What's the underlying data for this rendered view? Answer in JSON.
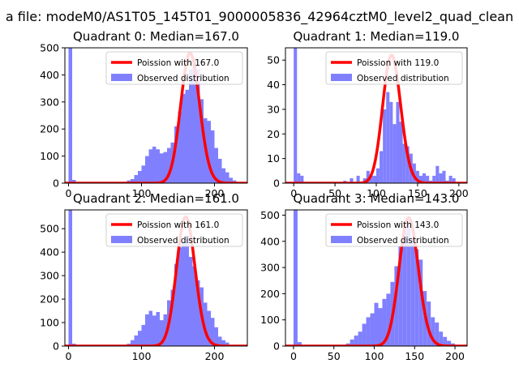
{
  "suptitle": "a file: modeM0/AS1T05_145T01_9000005836_42964cztM0_level2_quad_clean",
  "chart_data": [
    {
      "type": "histogram",
      "title": "Quadrant 0: Median=167.0",
      "xlim": [
        -5,
        245
      ],
      "ylim": [
        0,
        500
      ],
      "xticks": [
        0,
        100,
        200
      ],
      "yticks": [
        0,
        100,
        200,
        300,
        400,
        500
      ],
      "bin_width": 5,
      "legend_position": "upper right",
      "series": [
        {
          "name": "Poission with 167.0",
          "kind": "poisson_line",
          "mean": 167.0,
          "peak": 480,
          "color": "#ff0000"
        },
        {
          "name": "Observed distribution",
          "kind": "histogram",
          "color": "#8080ff",
          "x": [
            0,
            5,
            75,
            80,
            85,
            90,
            95,
            100,
            105,
            110,
            115,
            120,
            125,
            130,
            135,
            140,
            145,
            150,
            155,
            160,
            165,
            170,
            175,
            180,
            185,
            190,
            195,
            200,
            205,
            210,
            215,
            220,
            225
          ],
          "counts": [
            500,
            12,
            5,
            10,
            15,
            30,
            45,
            65,
            100,
            125,
            135,
            125,
            110,
            115,
            130,
            150,
            210,
            265,
            330,
            345,
            420,
            460,
            420,
            310,
            240,
            230,
            195,
            130,
            90,
            55,
            40,
            20,
            10
          ]
        }
      ]
    },
    {
      "type": "histogram",
      "title": "Quadrant 1: Median=119.0",
      "xlim": [
        -10,
        210
      ],
      "ylim": [
        0,
        55
      ],
      "xticks": [
        0,
        50,
        100,
        150,
        200
      ],
      "yticks": [
        0,
        10,
        20,
        30,
        40,
        50
      ],
      "bin_width": 4,
      "legend_position": "upper right",
      "series": [
        {
          "name": "Poission with 119.0",
          "kind": "poisson_line",
          "mean": 119.0,
          "peak": 52,
          "color": "#ff0000"
        },
        {
          "name": "Observed distribution",
          "kind": "histogram",
          "color": "#8080ff",
          "x": [
            0,
            4,
            8,
            60,
            68,
            76,
            84,
            88,
            92,
            96,
            100,
            104,
            108,
            112,
            116,
            120,
            124,
            128,
            132,
            136,
            140,
            144,
            148,
            152,
            156,
            160,
            164,
            168,
            172,
            176,
            180,
            184,
            188,
            192
          ],
          "counts": [
            55,
            4,
            3,
            1,
            2,
            3,
            2,
            5,
            3,
            3,
            6,
            13,
            30,
            37,
            33,
            24,
            33,
            25,
            16,
            15,
            12,
            8,
            5,
            3,
            4,
            3,
            1,
            3,
            7,
            4,
            5,
            1,
            3,
            2
          ]
        }
      ]
    },
    {
      "type": "histogram",
      "title": "Quadrant 2: Median=161.0",
      "xlim": [
        -5,
        245
      ],
      "ylim": [
        0,
        580
      ],
      "xticks": [
        0,
        100,
        200
      ],
      "yticks": [
        0,
        100,
        200,
        300,
        400,
        500
      ],
      "bin_width": 5,
      "legend_position": "upper right",
      "series": [
        {
          "name": "Poission with 161.0",
          "kind": "poisson_line",
          "mean": 161.0,
          "peak": 550,
          "color": "#ff0000"
        },
        {
          "name": "Observed distribution",
          "kind": "histogram",
          "color": "#8080ff",
          "x": [
            0,
            5,
            75,
            80,
            85,
            90,
            95,
            100,
            105,
            110,
            115,
            120,
            125,
            130,
            135,
            140,
            145,
            150,
            155,
            160,
            165,
            170,
            175,
            180,
            185,
            190,
            195,
            200,
            205,
            210,
            215,
            220
          ],
          "counts": [
            580,
            10,
            5,
            10,
            25,
            45,
            65,
            90,
            135,
            150,
            130,
            145,
            110,
            135,
            195,
            240,
            350,
            420,
            440,
            470,
            380,
            340,
            280,
            250,
            185,
            150,
            120,
            80,
            40,
            25,
            15,
            5
          ]
        }
      ]
    },
    {
      "type": "histogram",
      "title": "Quadrant 3: Median=143.0",
      "xlim": [
        -10,
        215
      ],
      "ylim": [
        0,
        520
      ],
      "xticks": [
        0,
        50,
        100,
        150,
        200
      ],
      "yticks": [
        0,
        100,
        200,
        300,
        400,
        500
      ],
      "bin_width": 5,
      "legend_position": "upper right",
      "series": [
        {
          "name": "Poission with 143.0",
          "kind": "poisson_line",
          "mean": 143.0,
          "peak": 490,
          "color": "#ff0000"
        },
        {
          "name": "Observed distribution",
          "kind": "histogram",
          "color": "#8080ff",
          "x": [
            0,
            5,
            60,
            65,
            70,
            75,
            80,
            85,
            90,
            95,
            100,
            105,
            110,
            115,
            120,
            125,
            130,
            135,
            140,
            145,
            150,
            155,
            160,
            165,
            170,
            175,
            180,
            185,
            190,
            195
          ],
          "counts": [
            520,
            15,
            5,
            10,
            25,
            40,
            55,
            85,
            110,
            125,
            165,
            145,
            180,
            200,
            245,
            305,
            380,
            440,
            460,
            410,
            370,
            330,
            210,
            170,
            110,
            90,
            55,
            35,
            20,
            10
          ]
        }
      ]
    }
  ]
}
